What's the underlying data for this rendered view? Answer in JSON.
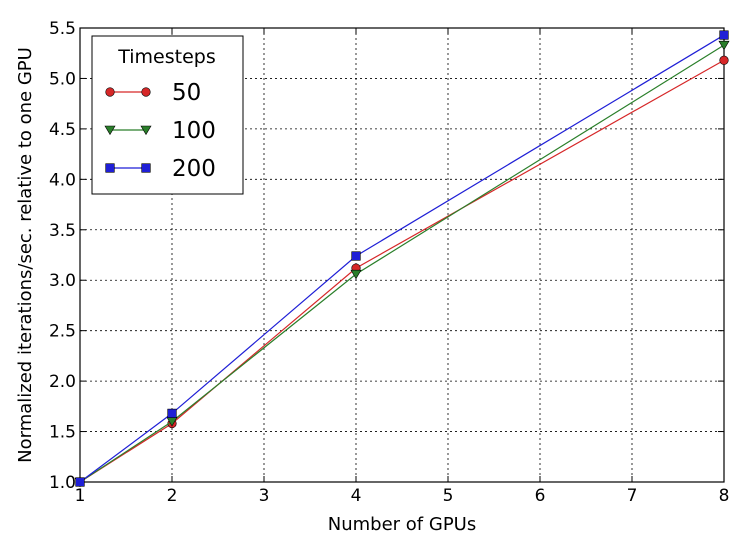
{
  "chart_data": {
    "type": "line",
    "xlabel": "Number of GPUs",
    "ylabel": "Normalized iterations/sec. relative to one GPU",
    "xlim": [
      1,
      8
    ],
    "ylim": [
      1.0,
      5.5
    ],
    "x_ticks": [
      "1",
      "2",
      "3",
      "4",
      "5",
      "6",
      "7",
      "8"
    ],
    "y_ticks": [
      "1.0",
      "1.5",
      "2.0",
      "2.5",
      "3.0",
      "3.5",
      "4.0",
      "4.5",
      "5.0",
      "5.5"
    ],
    "grid": true,
    "legend": {
      "title": "Timesteps",
      "position": "top-left"
    },
    "series": [
      {
        "name": "50",
        "x": [
          1,
          2,
          4,
          8
        ],
        "values": [
          1.0,
          1.58,
          3.12,
          5.18
        ],
        "color": "#d62728",
        "marker": "circle"
      },
      {
        "name": "100",
        "x": [
          1,
          2,
          4,
          8
        ],
        "values": [
          1.0,
          1.6,
          3.06,
          5.33
        ],
        "color": "#2a7f2a",
        "marker": "triangle-down"
      },
      {
        "name": "200",
        "x": [
          1,
          2,
          4,
          8
        ],
        "values": [
          1.0,
          1.68,
          3.24,
          5.43
        ],
        "color": "#1f1fd6",
        "marker": "square"
      }
    ]
  }
}
